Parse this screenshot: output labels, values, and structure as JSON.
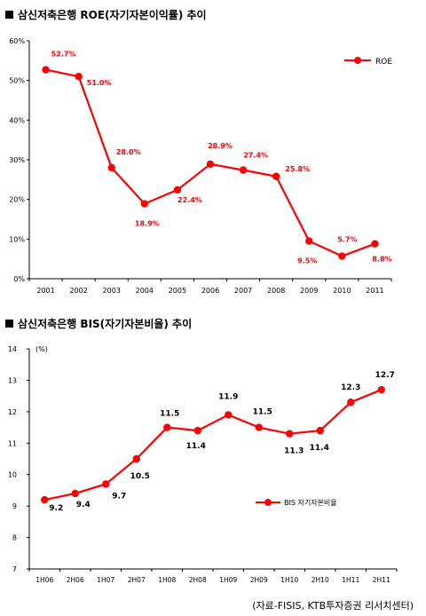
{
  "charts": {
    "roe": {
      "title": "삼신저축은행 ROE(자기자본이익률) 추이"
    },
    "bis": {
      "title": "삼신저축은행 BIS(자기자본비율) 추이"
    }
  },
  "source": "(자료-FISIS, KTB투자증권 리서치센터)",
  "colors": {
    "series": "#ff0000",
    "label": "#ff0000",
    "axis": "#000000"
  },
  "chart_data": [
    {
      "type": "line",
      "title": "삼신저축은행 ROE(자기자본이익률) 추이",
      "categories": [
        "2001",
        "2002",
        "2003",
        "2004",
        "2005",
        "2006",
        "2007",
        "2008",
        "2009",
        "2010",
        "2011"
      ],
      "series": [
        {
          "name": "ROE",
          "values": [
            52.7,
            51.0,
            28.0,
            18.9,
            22.4,
            28.9,
            27.4,
            25.8,
            9.5,
            5.7,
            8.8
          ]
        }
      ],
      "data_labels": [
        "52.7%",
        "51.0%",
        "28.0%",
        "18.9%",
        "22.4%",
        "28.9%",
        "27.4%",
        "25.8%",
        "9.5%",
        "5.7%",
        "8.8%"
      ],
      "yticks": [
        "0%",
        "10%",
        "20%",
        "30%",
        "40%",
        "50%",
        "60%"
      ],
      "ylim": [
        0,
        60
      ],
      "legend": "top-right",
      "grid": false
    },
    {
      "type": "line",
      "title": "삼신저축은행 BIS(자기자본비율) 추이",
      "categories": [
        "1H06",
        "2H06",
        "1H07",
        "2H07",
        "1H08",
        "2H08",
        "1H09",
        "2H09",
        "1H10",
        "2H10",
        "1H11",
        "2H11"
      ],
      "series": [
        {
          "name": "BIS 자기자본비율",
          "values": [
            9.2,
            9.4,
            9.7,
            10.5,
            11.5,
            11.4,
            11.9,
            11.5,
            11.3,
            11.4,
            12.3,
            12.7
          ]
        }
      ],
      "data_labels": [
        "9.2",
        "9.4",
        "9.7",
        "10.5",
        "11.5",
        "11.4",
        "11.9",
        "11.5",
        "11.3",
        "11.4",
        "12.3",
        "12.7"
      ],
      "unit": "(%)",
      "yticks": [
        "7",
        "8",
        "9",
        "10",
        "11",
        "12",
        "13",
        "14"
      ],
      "ylim": [
        7,
        14
      ],
      "legend": "center-right",
      "grid": false
    }
  ]
}
